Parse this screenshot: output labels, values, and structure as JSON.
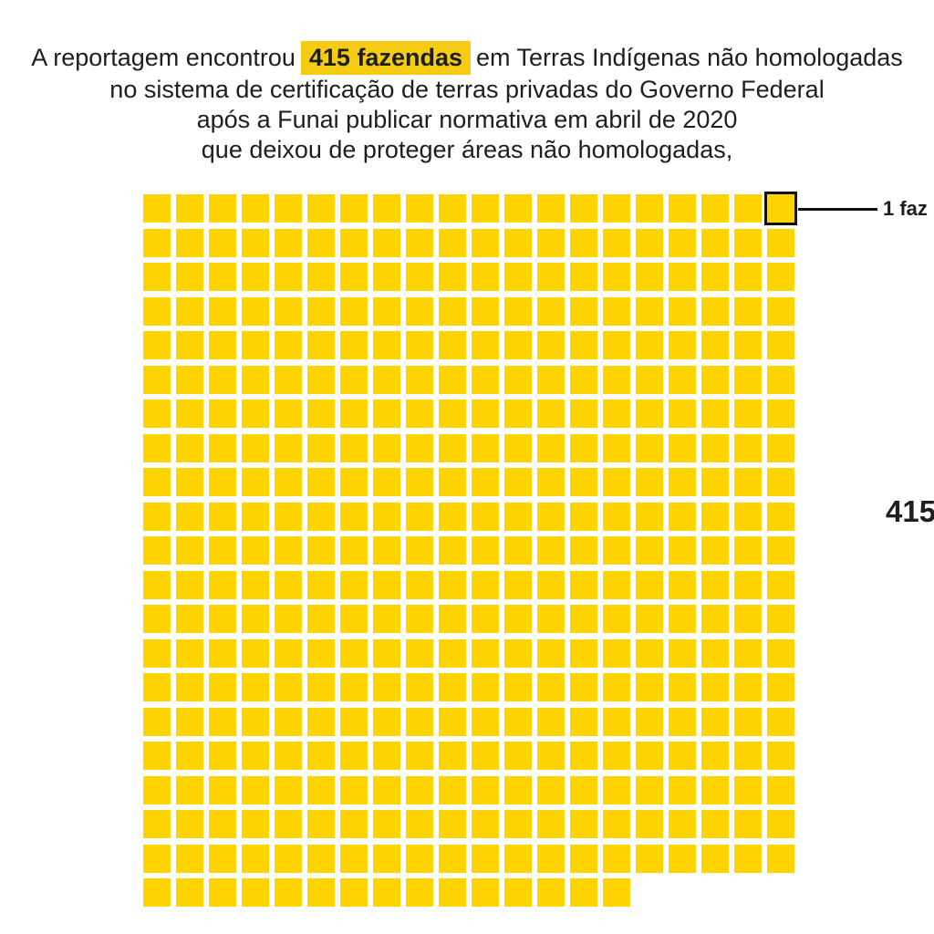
{
  "colors": {
    "background": "#ffffff",
    "square_yellow": "#ffd400",
    "headline_highlight": "#f6cc12",
    "annotation_line": "#111111",
    "text": "#1e1e1e"
  },
  "headline": {
    "line1_pre": "A reportagem encontrou",
    "line1_highlight": "415 fazendas",
    "line1_post": "em Terras Indígenas não homologadas",
    "line2": "no sistema de certificação de terras privadas do Governo Federal",
    "line3": "após a Funai publicar normativa em abril de 2020",
    "line4": "que deixou de proteger áreas não homologadas,"
  },
  "callout": {
    "unit_label": "1 faz"
  },
  "right_label": {
    "total": "415"
  },
  "chart_data": {
    "type": "waffle",
    "title": "A reportagem encontrou 415 fazendas em Terras Indígenas não homologadas no sistema de certificação de terras privadas do Governo Federal após a Funai publicar normativa em abril de 2020 que deixou de proteger áreas não homologadas,",
    "total_units": 415,
    "columns": 20,
    "full_rows": 20,
    "last_row_units": 15,
    "unit_value_label": "1 faz",
    "total_value_label": "415",
    "highlighted_unit_index": 19,
    "square_color": "#ffd400",
    "legend_position": "top-right-callout",
    "grid": "off"
  }
}
